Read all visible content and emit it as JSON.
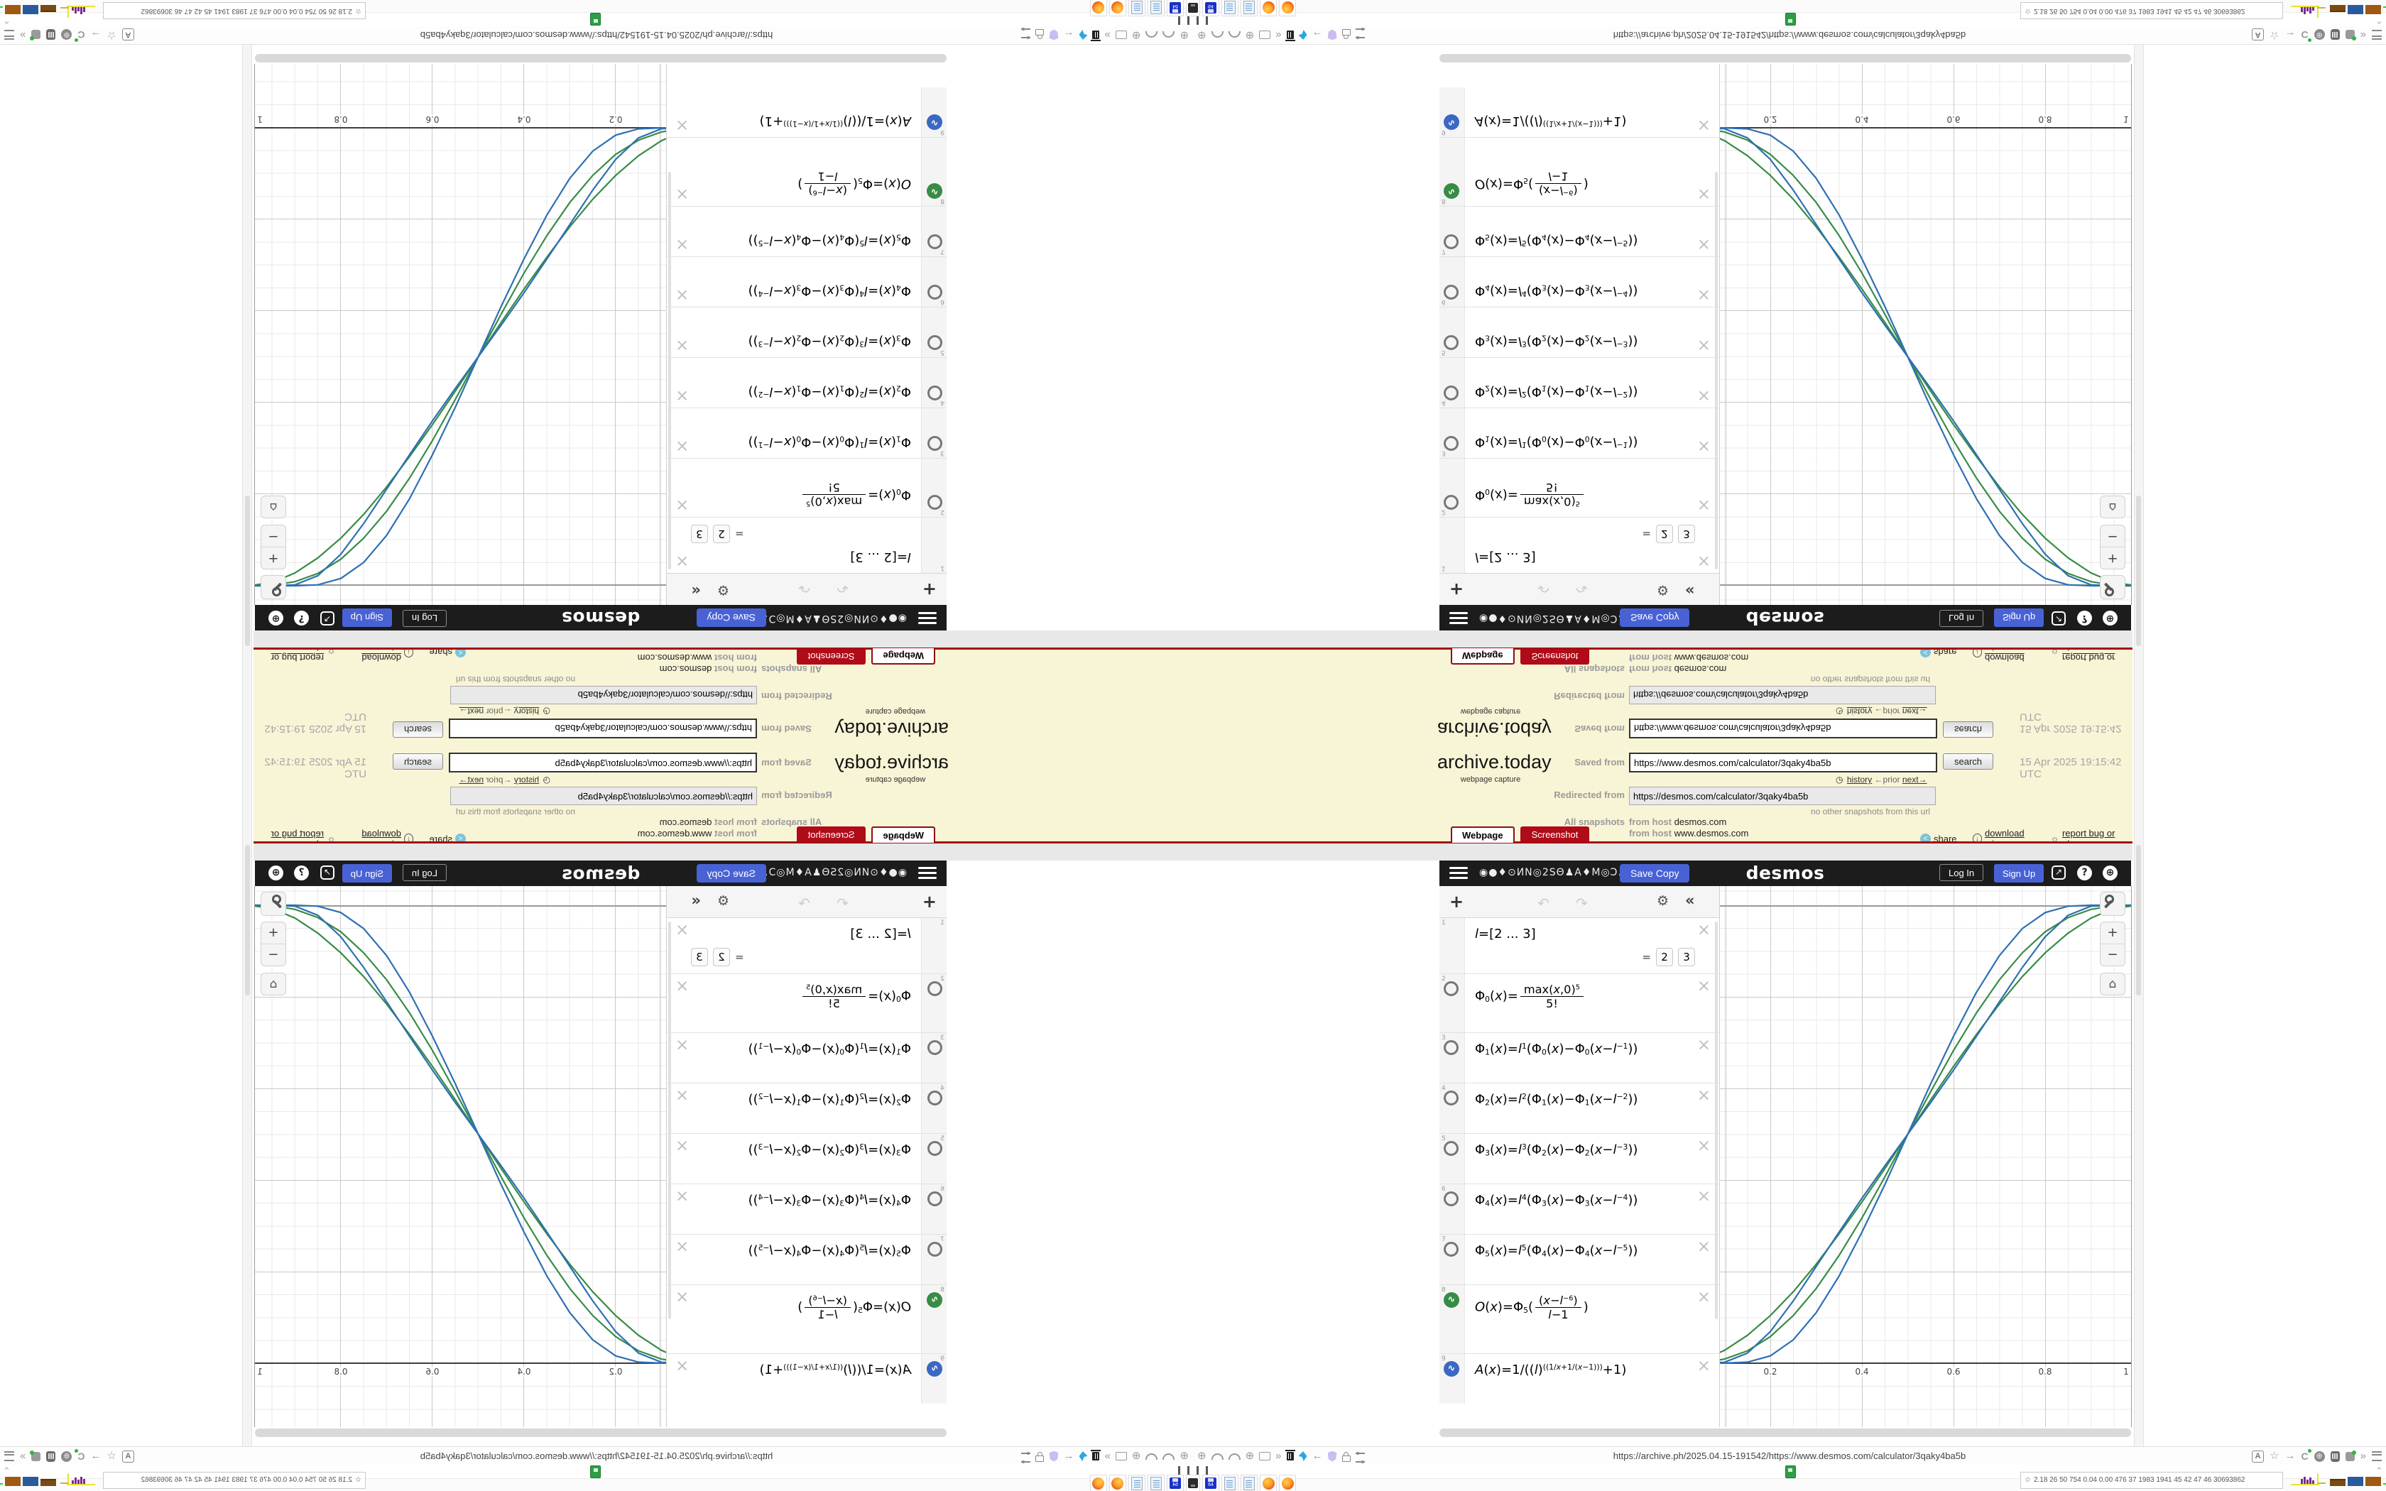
{
  "browser": {
    "url": "https://archive.ph/2025.04.15-191542/https://www.desmos.com/calculator/3qaky4ba5b"
  },
  "statusbar": {
    "metrics": "2.18  26  50  754 0.04 0.00 476  37  1983 1941  45  42  47  46  30693862"
  },
  "taskbar": {
    "items": [
      "drive",
      "floppy",
      "notepad",
      "notepad",
      "firefox",
      "firefox"
    ],
    "floppy_label": "64"
  },
  "archive": {
    "logo": "archive.today",
    "tagline": "webpage capture",
    "saved_label": "Saved from",
    "saved_url": "https://www.desmos.com/calculator/3qaky4ba5b",
    "search_label": "search",
    "timestamp": "15 Apr 2025 19:15:42 UTC",
    "history_label": "history",
    "prior_label": "←prior",
    "next_label": "next→",
    "redirected_label": "Redirected from",
    "redirected_url": "https://desmos.com/calculator/3qaky4ba5b",
    "no_snapshots": "no other snapshots from this url",
    "all_snapshots_label": "All snapshots",
    "from_host_label": "from host",
    "host1": "desmos.com",
    "host2": "www.desmos.com",
    "tab_webpage": "Webpage",
    "tab_screenshot": "Screenshot",
    "share_label": "share",
    "download_label": "download .zip",
    "report_label": "report bug or abuse"
  },
  "desmos": {
    "title": "◉●♦⊙ИN◎2SΘ♟A♦M◎Ɔ…",
    "save_copy": "Save Copy",
    "logo": "desmos",
    "log_in": "Log In",
    "sign_up": "Sign Up",
    "list_equals": "=",
    "list_values": [
      "2",
      "3"
    ],
    "expressions": [
      {
        "n": "1",
        "icon": "none",
        "f": "l=[2 ... 3]"
      },
      {
        "n": "2",
        "icon": "circle",
        "f": "Φ_0(x)=\\f{max(x,0)^5}{5!}"
      },
      {
        "n": "3",
        "icon": "circle",
        "f": "Φ_1(x)=l^1(Φ_0(x)−Φ_0(x−l^{−1}))"
      },
      {
        "n": "4",
        "icon": "circle",
        "f": "Φ_2(x)=l^2(Φ_1(x)−Φ_1(x−l^{−2}))"
      },
      {
        "n": "5",
        "icon": "circle",
        "f": "Φ_3(x)=l^3(Φ_2(x)−Φ_2(x−l^{−3}))"
      },
      {
        "n": "6",
        "icon": "circle",
        "f": "Φ_4(x)=l^4(Φ_3(x)−Φ_3(x−l^{−4}))"
      },
      {
        "n": "7",
        "icon": "circle",
        "f": "Φ_5(x)=l^5(Φ_4(x)−Φ_4(x−l^{−5}))"
      },
      {
        "n": "8",
        "icon": "green",
        "f": "O(x)=Φ_5(\\f{(x−l^{−6})}{l−1})"
      },
      {
        "n": "9",
        "icon": "blue",
        "f": "A(x)=1/((l)^{((1/x+1/(x−1)))}+1)"
      }
    ]
  },
  "chart_data": {
    "type": "line",
    "title": "",
    "xlabel": "",
    "ylabel": "",
    "grid": true,
    "legend_position": "none",
    "x_tick_labels": [
      "0.2",
      "0.4",
      "0.6",
      "0.8",
      "1"
    ],
    "x_tick_values": [
      0.2,
      0.4,
      0.6,
      0.8,
      1
    ],
    "visible_x_range": [
      0.09,
      1.0
    ],
    "visible_y_range": [
      -0.14,
      1.02
    ],
    "minor_grid_step": 0.05,
    "major_grid_step": 0.2,
    "x": [
      0,
      0.05,
      0.1,
      0.15,
      0.2,
      0.25,
      0.3,
      0.35,
      0.4,
      0.45,
      0.5,
      0.55,
      0.6,
      0.65,
      0.7,
      0.75,
      0.8,
      0.85,
      0.9,
      0.95,
      1
    ],
    "series": [
      {
        "name": "O(x) with l=2",
        "color": "#388c46",
        "y": [
          0,
          0.007,
          0.028,
          0.061,
          0.104,
          0.156,
          0.216,
          0.282,
          0.352,
          0.425,
          0.5,
          0.575,
          0.648,
          0.718,
          0.784,
          0.844,
          0.896,
          0.939,
          0.972,
          0.993,
          1
        ]
      },
      {
        "name": "O(x) with l=3",
        "color": "#388c46",
        "y": [
          0,
          0.001,
          0.009,
          0.027,
          0.058,
          0.104,
          0.163,
          0.235,
          0.317,
          0.407,
          0.5,
          0.593,
          0.683,
          0.765,
          0.837,
          0.896,
          0.942,
          0.973,
          0.991,
          0.999,
          1
        ]
      },
      {
        "name": "A(x) with l=2",
        "color": "#2d70b3",
        "y": [
          0,
          0,
          0.002,
          0.022,
          0.069,
          0.136,
          0.211,
          0.286,
          0.36,
          0.431,
          0.5,
          0.569,
          0.64,
          0.714,
          0.789,
          0.864,
          0.931,
          0.978,
          0.998,
          1,
          1
        ]
      },
      {
        "name": "A(x) with l=3",
        "color": "#2d70b3",
        "y": [
          0,
          0,
          0.0001,
          0.0024,
          0.016,
          0.051,
          0.11,
          0.19,
          0.286,
          0.39,
          0.5,
          0.61,
          0.714,
          0.81,
          0.89,
          0.949,
          0.984,
          0.998,
          1,
          1,
          1
        ]
      }
    ]
  }
}
